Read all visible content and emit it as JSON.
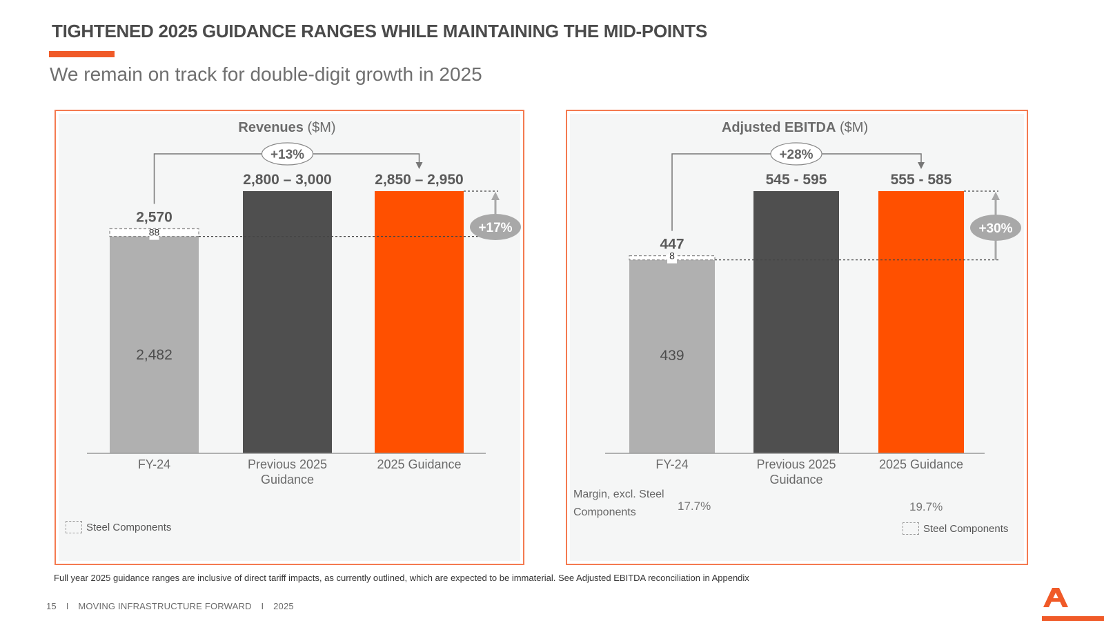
{
  "title": "TIGHTENED 2025 GUIDANCE RANGES WHILE MAINTAINING THE MID-POINTS",
  "subtitle": "We remain on track for double-digit growth in 2025",
  "colors": {
    "accent": "#f05a28",
    "bar_fy24": "#b0b0b0",
    "bar_previous": "#4f4f4f",
    "bar_guidance": "#ff5000",
    "panel_bg": "#f5f6f6",
    "panel_border": "#f47a50"
  },
  "legend_label": "Steel Components",
  "margin_label": "Margin, excl. Steel Components",
  "chart_data": [
    {
      "type": "bar",
      "title_bold": "Revenues",
      "title_unit": "($M)",
      "categories": [
        "FY-24",
        "Previous 2025 Guidance",
        "2025 Guidance"
      ],
      "category_lines": [
        [
          "FY-24"
        ],
        [
          "Previous 2025",
          "Guidance"
        ],
        [
          "2025 Guidance"
        ]
      ],
      "base_value": 2482,
      "steel_value": 88,
      "total_value": 2570,
      "values": [
        2482,
        3000,
        3000
      ],
      "data_labels": [
        "2,570",
        "2,800 – 3,000",
        "2,850 – 2,950"
      ],
      "base_label": "2,482",
      "steel_label": "88",
      "growth_top": "+13%",
      "growth_side": "+17%",
      "ylim": [
        0,
        3000
      ]
    },
    {
      "type": "bar",
      "title_bold": "Adjusted EBITDA",
      "title_unit": "($M)",
      "categories": [
        "FY-24",
        "Previous 2025 Guidance",
        "2025 Guidance"
      ],
      "category_lines": [
        [
          "FY-24"
        ],
        [
          "Previous 2025",
          "Guidance"
        ],
        [
          "2025 Guidance"
        ]
      ],
      "base_value": 439,
      "steel_value": 8,
      "total_value": 447,
      "values": [
        439,
        595,
        595
      ],
      "data_labels": [
        "447",
        "545 - 595",
        "555 - 585"
      ],
      "base_label": "439",
      "steel_label": "8",
      "growth_top": "+28%",
      "growth_side": "+30%",
      "margins": [
        "17.7%",
        "19.7%"
      ],
      "ylim": [
        0,
        595
      ]
    }
  ],
  "footnote": "Full year 2025 guidance ranges are inclusive of direct tariff impacts, as currently outlined, which are expected to be immaterial.  See Adjusted EBITDA reconciliation in Appendix",
  "footer": {
    "page": "15",
    "sep": "I",
    "tagline": "MOVING INFRASTRUCTURE FORWARD",
    "year": "2025"
  },
  "logo_icon": "company-logo-icon"
}
